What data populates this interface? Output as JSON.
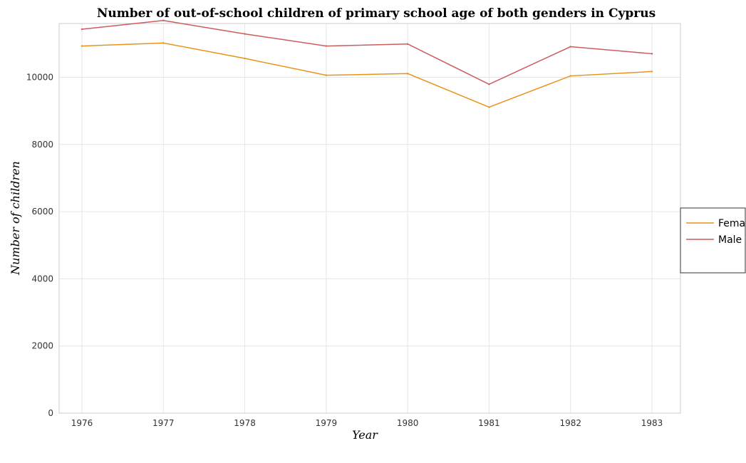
{
  "chart_data": {
    "type": "line",
    "title": "Number of out-of-school children of primary school age of both genders in Cyprus",
    "xlabel": "Year",
    "ylabel": "Number of children",
    "categories": [
      "1976",
      "1977",
      "1978",
      "1979",
      "1980",
      "1981",
      "1982",
      "1983"
    ],
    "ylim": [
      0,
      11600
    ],
    "yticks": [
      0,
      2000,
      4000,
      6000,
      8000,
      10000
    ],
    "grid": true,
    "legend_position": "right",
    "series": [
      {
        "name": "Female",
        "color": "#e8941a",
        "values": [
          10930,
          11020,
          10560,
          10060,
          10110,
          9110,
          10040,
          10170
        ]
      },
      {
        "name": "Male",
        "color": "#cd5c5c",
        "values": [
          11430,
          11690,
          11290,
          10930,
          10990,
          9790,
          10910,
          10700
        ]
      }
    ]
  }
}
